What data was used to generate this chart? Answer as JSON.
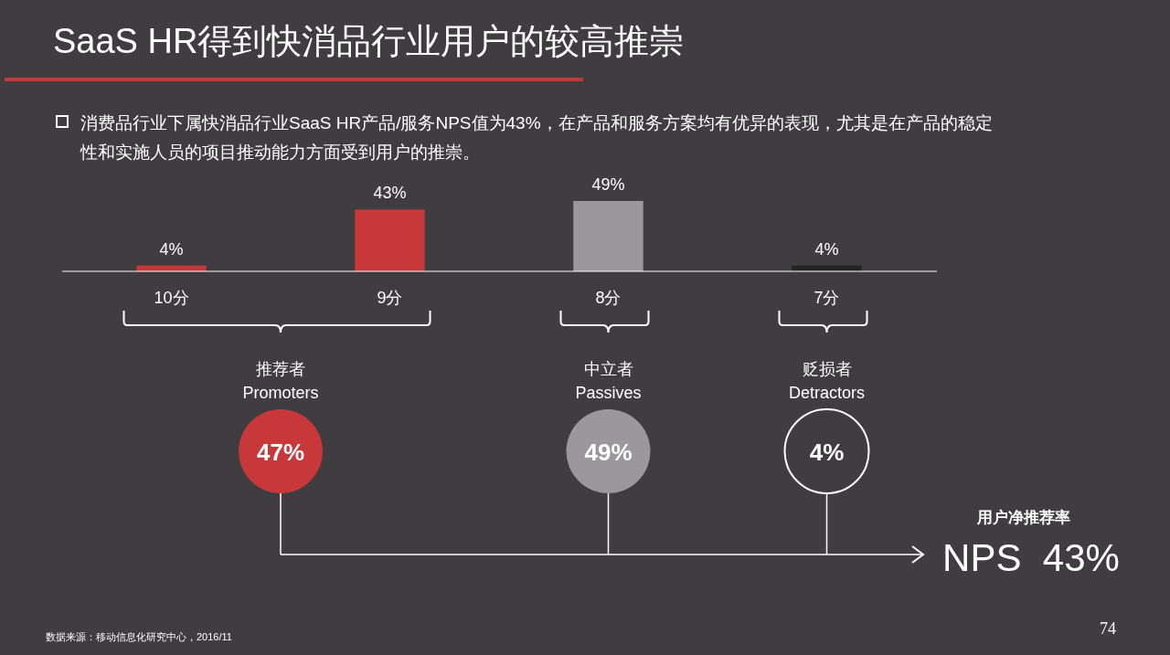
{
  "chart_data": {
    "type": "bar",
    "title": "SaaS HR得到快消品行业用户的较高推崇",
    "subtitle": "消费品行业下属快消品行业SaaS HR产品/服务NPS值为43%，在产品和服务方案均有优异的表现，尤其是在产品的稳定性和实施人员的项目推动能力方面受到用户的推崇。",
    "categories": [
      "10分",
      "9分",
      "8分",
      "7分"
    ],
    "values": [
      4,
      43,
      49,
      4
    ],
    "colors": [
      "#c8383a",
      "#c8383a",
      "#9a989b",
      "#232223"
    ],
    "value_labels": [
      "4%",
      "43%",
      "49%",
      "4%"
    ],
    "annotations": [
      "推荐者",
      "Promoters",
      "47%",
      "中立者",
      "Passives",
      "49%",
      "贬损者",
      "Detractors",
      "4%",
      "用户净推荐率",
      "NPS  43%",
      "数据来源：移动信息化研究中心，2016/11",
      "74"
    ]
  }
}
